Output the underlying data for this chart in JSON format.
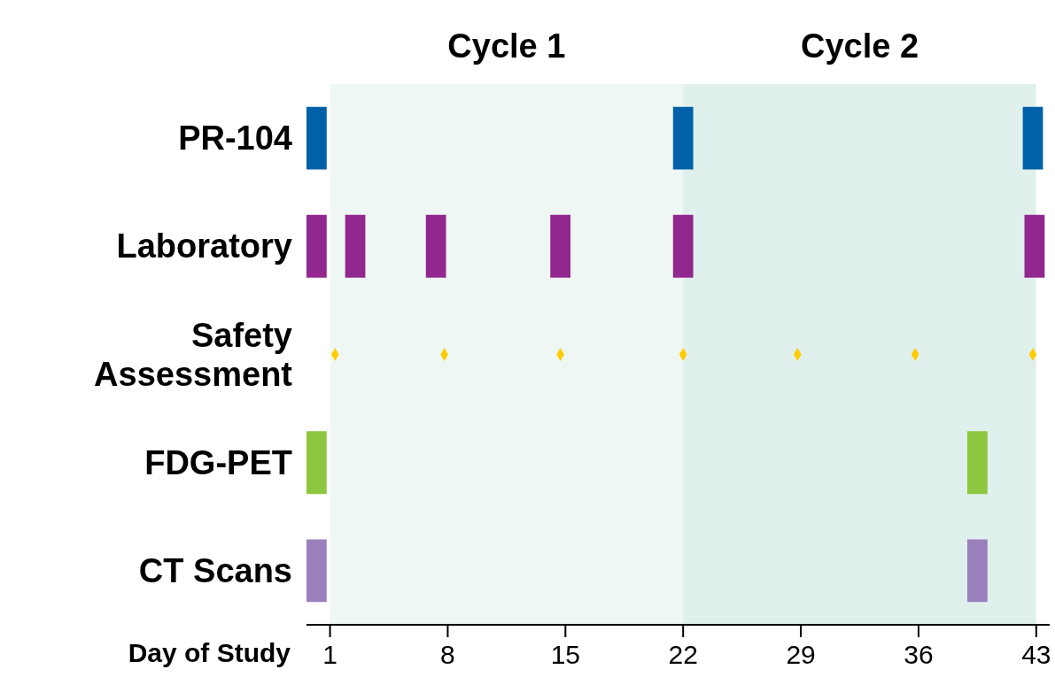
{
  "chart_data": {
    "type": "bar",
    "orientation": "horizontal",
    "xlabel": "Day of Study",
    "categories": [
      "PR-104",
      "Laboratory",
      "Safety Assessment",
      "FDG-PET",
      "CT Scans"
    ],
    "xlim": [
      -0.4,
      43.8
    ],
    "xticks": [
      1,
      8,
      15,
      22,
      29,
      36,
      43
    ],
    "grid": false,
    "legend": false,
    "bands": [
      {
        "axis": "x",
        "from": 1,
        "to": 22,
        "label": "Cycle 1",
        "color": "#eef7f4"
      },
      {
        "axis": "x",
        "from": 22,
        "to": 43,
        "label": "Cycle 2",
        "color": "#e0f0ec"
      }
    ],
    "series": [
      {
        "colors": [
          "#0060a8",
          "#92278f",
          null,
          "#8dc63f",
          "#9b80be"
        ],
        "base": [
          -0.4,
          -0.4,
          null,
          -0.4,
          -0.4
        ],
        "values": [
          1.2,
          1.2,
          null,
          1.2,
          1.2
        ]
      },
      {
        "colors": [
          "#0060a8",
          "#92278f",
          null,
          "#8dc63f",
          "#9b80be"
        ],
        "base": [
          21.4,
          1.9,
          null,
          38.9,
          38.9
        ],
        "values": [
          1.2,
          1.2,
          null,
          1.2,
          1.2
        ]
      },
      {
        "colors": [
          "#0060a8",
          "#92278f",
          null,
          null,
          null
        ],
        "base": [
          42.2,
          6.7,
          null,
          null,
          null
        ],
        "values": [
          1.2,
          1.2,
          null,
          null,
          null
        ]
      },
      {
        "colors": [
          null,
          "#92278f",
          null,
          null,
          null
        ],
        "base": [
          null,
          14.1,
          null,
          null,
          null
        ],
        "values": [
          null,
          1.2,
          null,
          null,
          null
        ]
      },
      {
        "colors": [
          null,
          "#92278f",
          null,
          null,
          null
        ],
        "base": [
          null,
          21.4,
          null,
          null,
          null
        ],
        "values": [
          null,
          1.2,
          null,
          null,
          null
        ]
      },
      {
        "colors": [
          null,
          "#92278f",
          null,
          null,
          null
        ],
        "base": [
          null,
          42.3,
          null,
          null,
          null
        ],
        "values": [
          null,
          1.2,
          null,
          null,
          null
        ]
      },
      {
        "type": "scatter",
        "marker": "diamond",
        "color": "#ffcc00",
        "x": [
          "Safety Assessment",
          "Safety Assessment",
          "Safety Assessment",
          "Safety Assessment",
          "Safety Assessment",
          "Safety Assessment",
          "Safety Assessment"
        ],
        "values": [
          1.3,
          7.8,
          14.7,
          22,
          28.8,
          35.8,
          42.8
        ]
      }
    ]
  }
}
